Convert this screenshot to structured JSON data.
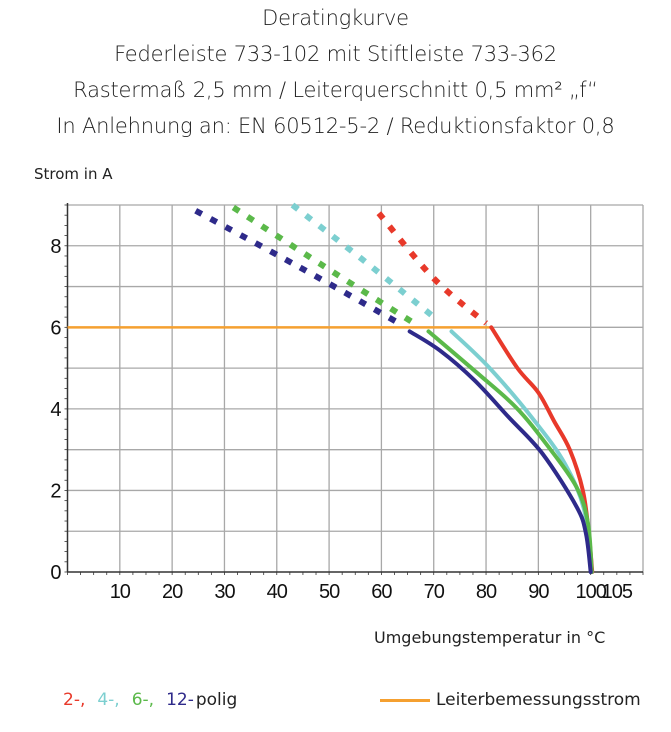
{
  "titles": [
    "Deratingkurve",
    "Federleiste 733-102 mit Stiftleiste 733-362",
    "Rastermaß 2,5 mm / Leiterquerschnitt 0,5 mm² „f“",
    "In Anlehnung an: EN 60512-5-2 / Reduktionsfaktor 0,8"
  ],
  "chart_data": {
    "type": "line",
    "ylabel": "Strom in A",
    "xlabel": "Umgebungstemperatur in °C",
    "xlim": [
      0,
      110
    ],
    "ylim": [
      0,
      9
    ],
    "xticks": [
      10,
      20,
      30,
      40,
      50,
      60,
      70,
      80,
      90,
      100,
      105
    ],
    "yticks": [
      0,
      2,
      4,
      6,
      8
    ],
    "grid": true,
    "rated_current": {
      "name": "Leiterbemessungsstrom",
      "value": 6,
      "color": "#f5a030"
    },
    "series": [
      {
        "name": "2-",
        "color": "#e8392a",
        "dashed": [
          [
            59.5,
            8.8
          ],
          [
            70,
            7.2
          ],
          [
            80,
            6.1
          ]
        ],
        "solid": [
          [
            81,
            6
          ],
          [
            86,
            5.0
          ],
          [
            90,
            4.4
          ],
          [
            93,
            3.7
          ],
          [
            96,
            3.0
          ],
          [
            98.5,
            2.0
          ],
          [
            99.6,
            1.0
          ],
          [
            100.3,
            0
          ]
        ]
      },
      {
        "name": "4-",
        "color": "#7ccfd0",
        "dashed": [
          [
            43,
            9.0
          ],
          [
            57,
            7.6
          ],
          [
            71,
            6.15
          ]
        ],
        "solid": [
          [
            73.4,
            5.9
          ],
          [
            80.7,
            5.0
          ],
          [
            89.3,
            3.7
          ],
          [
            95.1,
            2.65
          ],
          [
            98.8,
            1.5
          ],
          [
            100.2,
            0
          ]
        ]
      },
      {
        "name": "6-",
        "color": "#5bb94a",
        "dashed": [
          [
            31.7,
            8.94
          ],
          [
            49,
            7.5
          ],
          [
            66.5,
            6.08
          ]
        ],
        "solid": [
          [
            69,
            5.9
          ],
          [
            78.5,
            4.86
          ],
          [
            85.7,
            4.04
          ],
          [
            91.5,
            3.14
          ],
          [
            97.3,
            2.08
          ],
          [
            99.5,
            1.18
          ],
          [
            100.2,
            0
          ]
        ]
      },
      {
        "name": "12-",
        "color": "#2e2a8a",
        "dashed": [
          [
            24.5,
            8.86
          ],
          [
            44,
            7.5
          ],
          [
            63.1,
            6.12
          ]
        ],
        "solid": [
          [
            65.4,
            5.9
          ],
          [
            71.2,
            5.43
          ],
          [
            77.8,
            4.7
          ],
          [
            84.3,
            3.8
          ],
          [
            90.8,
            2.9
          ],
          [
            97.3,
            1.6
          ],
          [
            99.1,
            0.94
          ],
          [
            100,
            0
          ]
        ]
      }
    ]
  },
  "legend": {
    "series_labels": [
      "2-,",
      "4-,",
      "6-,",
      "12-"
    ],
    "suffix": "polig",
    "rated_label": "Leiterbemessungsstrom"
  }
}
